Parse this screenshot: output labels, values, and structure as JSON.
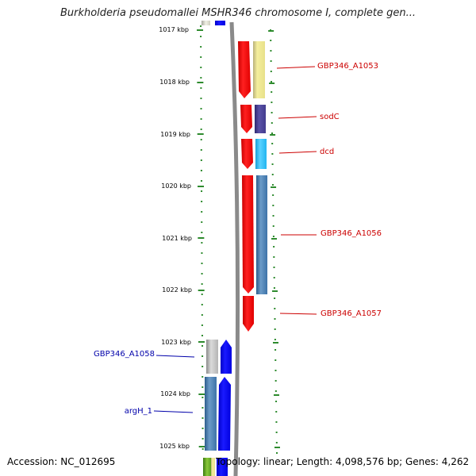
{
  "title": "Burkholderia pseudomallei MSHR346 chromosome I, complete gen...",
  "footer": {
    "accession": "Accession: NC_012695",
    "stats": "Topology: linear; Length: 4,098,576 bp; Genes: 4,262"
  },
  "ruler": {
    "labels": [
      "1017 kbp",
      "1018 kbp",
      "1019 kbp",
      "1020 kbp",
      "1021 kbp",
      "1022 kbp",
      "1023 kbp",
      "1024 kbp",
      "1025 kbp"
    ]
  },
  "colors": {
    "forward_strand_label": "#cc0000",
    "reverse_strand_label": "#0000aa",
    "gene_red": "#ff0000",
    "gene_blue": "#0000ff",
    "ruler_tick": "#2e8b2e"
  },
  "gene_labels": {
    "right": [
      "GBP346_A1053",
      "sodC",
      "dcd",
      "GBP346_A1056",
      "GBP346_A1057"
    ],
    "left": [
      "GBP346_A1058",
      "argH_1"
    ]
  }
}
